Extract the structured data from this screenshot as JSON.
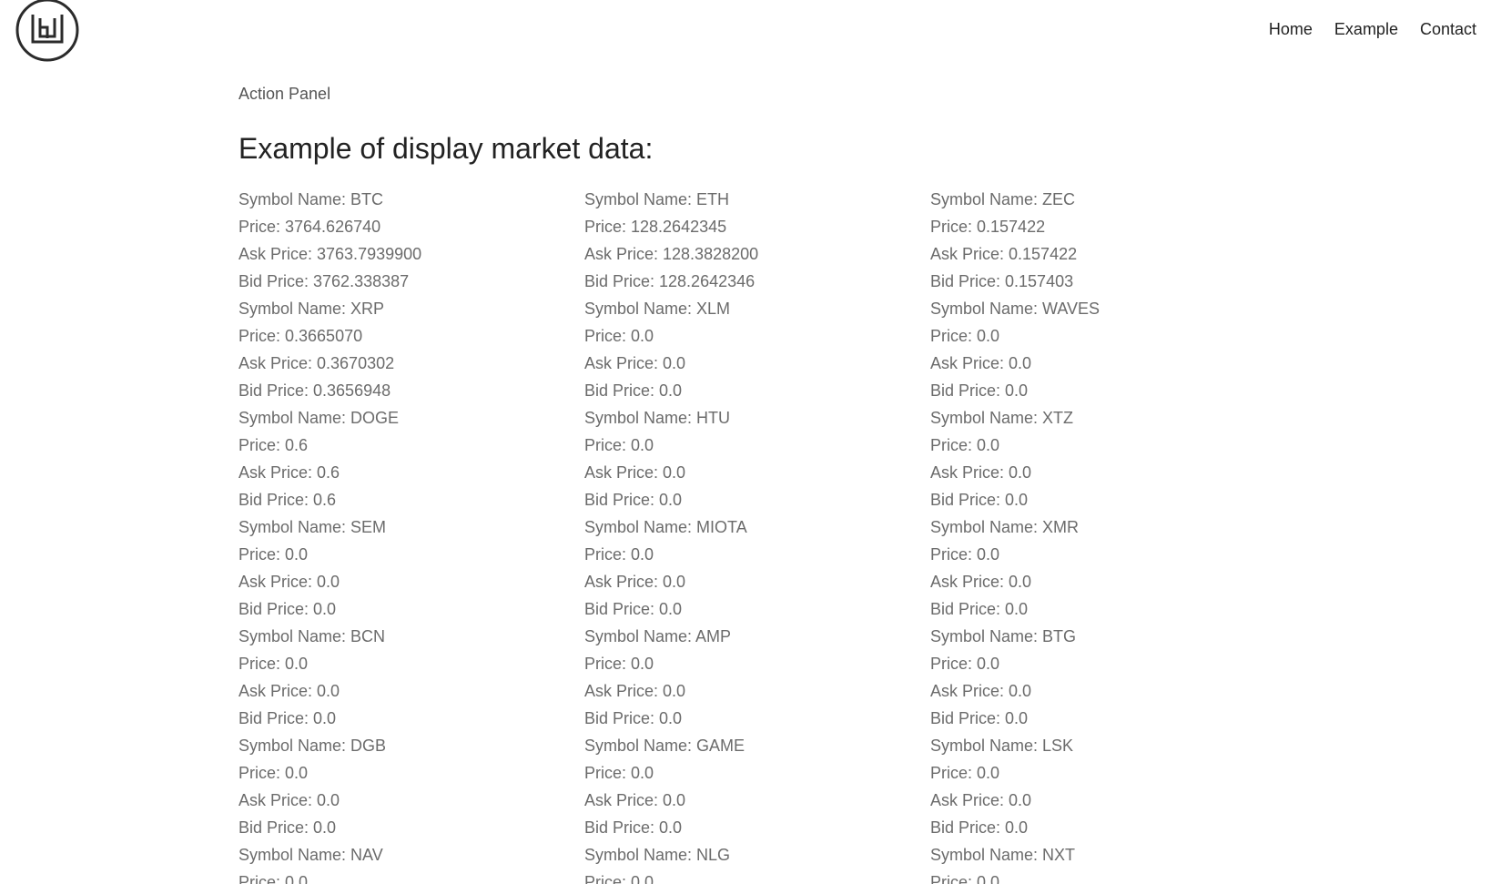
{
  "header": {
    "logo_icon": "hu-circle-logo-icon",
    "nav": [
      "Home",
      "Example",
      "Contact"
    ]
  },
  "main": {
    "panel_label": "Action Panel",
    "heading": "Example of display market data:",
    "rows": [
      [
        "Symbol Name: BTC",
        "Symbol Name: ETH",
        "Symbol Name: ZEC"
      ],
      [
        "Price: 3764.626740",
        "Price: 128.2642345",
        "Price: 0.157422"
      ],
      [
        "Ask Price: 3763.7939900",
        "Ask Price: 128.3828200",
        "Ask Price: 0.157422"
      ],
      [
        "Bid Price: 3762.338387",
        "Bid Price: 128.2642346",
        "Bid Price: 0.157403"
      ],
      [
        "Symbol Name: XRP",
        "Symbol Name: XLM",
        "Symbol Name: WAVES"
      ],
      [
        "Price: 0.3665070",
        "Price: 0.0",
        "Price: 0.0"
      ],
      [
        "Ask Price: 0.3670302",
        "Ask Price: 0.0",
        "Ask Price: 0.0"
      ],
      [
        "Bid Price: 0.3656948",
        "Bid Price: 0.0",
        "Bid Price: 0.0"
      ],
      [
        "Symbol Name: DOGE",
        "Symbol Name: HTU",
        "Symbol Name: XTZ"
      ],
      [
        "Price: 0.6",
        "Price: 0.0",
        "Price: 0.0"
      ],
      [
        "Ask Price: 0.6",
        "Ask Price: 0.0",
        "Ask Price: 0.0"
      ],
      [
        "Bid Price: 0.6",
        "Bid Price: 0.0",
        "Bid Price: 0.0"
      ],
      [
        "Symbol Name: SEM",
        "Symbol Name: MIOTA",
        "Symbol Name: XMR"
      ],
      [
        "Price: 0.0",
        "Price: 0.0",
        "Price: 0.0"
      ],
      [
        "Ask Price: 0.0",
        "Ask Price: 0.0",
        "Ask Price: 0.0"
      ],
      [
        "Bid Price: 0.0",
        "Bid Price: 0.0",
        "Bid Price: 0.0"
      ],
      [
        "Symbol Name: BCN",
        "Symbol Name: AMP",
        "Symbol Name: BTG"
      ],
      [
        "Price: 0.0",
        "Price: 0.0",
        "Price: 0.0"
      ],
      [
        "Ask Price: 0.0",
        "Ask Price: 0.0",
        "Ask Price: 0.0"
      ],
      [
        "Bid Price: 0.0",
        "Bid Price: 0.0",
        "Bid Price: 0.0"
      ],
      [
        "Symbol Name: DGB",
        "Symbol Name: GAME",
        "Symbol Name: LSK"
      ],
      [
        "Price: 0.0",
        "Price: 0.0",
        "Price: 0.0"
      ],
      [
        "Ask Price: 0.0",
        "Ask Price: 0.0",
        "Ask Price: 0.0"
      ],
      [
        "Bid Price: 0.0",
        "Bid Price: 0.0",
        "Bid Price: 0.0"
      ],
      [
        "Symbol Name: NAV",
        "Symbol Name: NLG",
        "Symbol Name: NXT"
      ],
      [
        "Price: 0.0",
        "Price: 0.0",
        "Price: 0.0"
      ]
    ]
  }
}
